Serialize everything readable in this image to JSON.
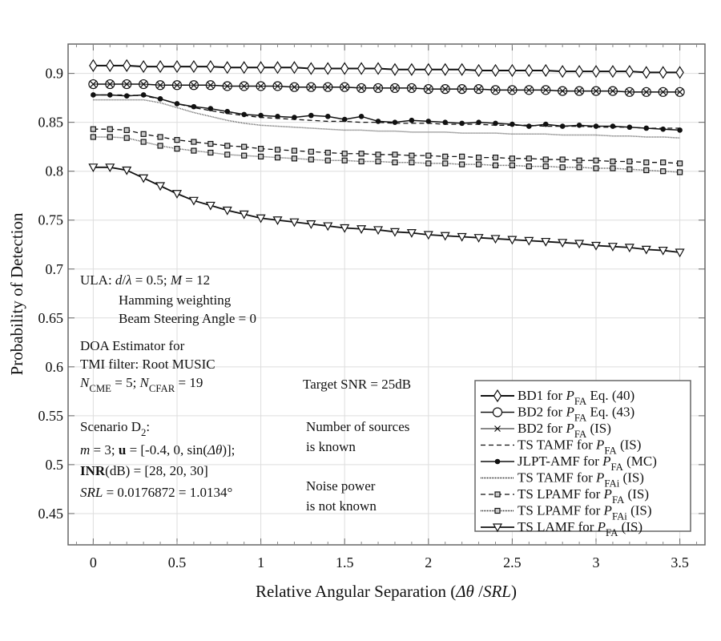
{
  "chart_data": {
    "type": "line",
    "xlabel": [
      {
        "t": "Relative Angular Separation ("
      },
      {
        "t": "Δθ",
        "i": 1
      },
      {
        "t": " /"
      },
      {
        "t": "SRL",
        "i": 1
      },
      {
        "t": ")"
      }
    ],
    "ylabel": "Probability of Detection",
    "xlim": [
      -0.15,
      3.65
    ],
    "ylim": [
      0.418,
      0.93
    ],
    "xticks": [
      0,
      0.5,
      1,
      1.5,
      2,
      2.5,
      3,
      3.5
    ],
    "xtick_labels": [
      "0",
      "0.5",
      "1",
      "1.5",
      "2",
      "2.5",
      "3",
      "3.5"
    ],
    "yticks": [
      0.45,
      0.5,
      0.55,
      0.6,
      0.65,
      0.7,
      0.75,
      0.8,
      0.85,
      0.9
    ],
    "ytick_labels": [
      "0.45",
      "0.5",
      "0.55",
      "0.6",
      "0.65",
      "0.7",
      "0.75",
      "0.8",
      "0.85",
      "0.9"
    ],
    "grid": true,
    "legend_placement": "bottom-right",
    "x": [
      0,
      0.1,
      0.2,
      0.3,
      0.4,
      0.5,
      0.6,
      0.7,
      0.8,
      0.9,
      1.0,
      1.1,
      1.2,
      1.3,
      1.4,
      1.5,
      1.6,
      1.7,
      1.8,
      1.9,
      2.0,
      2.1,
      2.2,
      2.3,
      2.4,
      2.5,
      2.6,
      2.7,
      2.8,
      2.9,
      3.0,
      3.1,
      3.2,
      3.3,
      3.4,
      3.5
    ],
    "series": [
      {
        "name": "BD1 for P_FA Eq. (40)",
        "label": [
          "BD1 for ",
          "FA",
          " Eq. (40)"
        ],
        "marker": "diamond",
        "dash": "",
        "width": 2,
        "values": [
          0.908,
          0.908,
          0.908,
          0.907,
          0.907,
          0.907,
          0.907,
          0.907,
          0.906,
          0.906,
          0.906,
          0.906,
          0.906,
          0.905,
          0.905,
          0.905,
          0.905,
          0.905,
          0.904,
          0.904,
          0.904,
          0.904,
          0.904,
          0.903,
          0.903,
          0.903,
          0.903,
          0.903,
          0.902,
          0.902,
          0.902,
          0.902,
          0.902,
          0.901,
          0.901,
          0.901
        ]
      },
      {
        "name": "BD2  for P_FA Eq. (43)",
        "label": [
          "BD2  for ",
          "FA",
          " Eq. (43)"
        ],
        "marker": "circle",
        "dash": "",
        "width": 1.5,
        "values": [
          0.889,
          0.889,
          0.889,
          0.889,
          0.888,
          0.888,
          0.888,
          0.888,
          0.887,
          0.887,
          0.887,
          0.887,
          0.886,
          0.886,
          0.886,
          0.886,
          0.885,
          0.885,
          0.885,
          0.885,
          0.884,
          0.884,
          0.884,
          0.884,
          0.883,
          0.883,
          0.883,
          0.883,
          0.882,
          0.882,
          0.882,
          0.882,
          0.881,
          0.881,
          0.881,
          0.881
        ]
      },
      {
        "name": "BD2  for P_FA (IS)",
        "label": [
          "BD2  for ",
          "FA",
          " (IS)"
        ],
        "marker": "x",
        "dash": "",
        "width": 1,
        "values": [
          0.889,
          0.889,
          0.889,
          0.889,
          0.888,
          0.888,
          0.888,
          0.888,
          0.887,
          0.887,
          0.887,
          0.887,
          0.886,
          0.886,
          0.886,
          0.886,
          0.885,
          0.885,
          0.885,
          0.885,
          0.884,
          0.884,
          0.884,
          0.884,
          0.883,
          0.883,
          0.883,
          0.883,
          0.882,
          0.882,
          0.882,
          0.882,
          0.881,
          0.881,
          0.881,
          0.881
        ]
      },
      {
        "name": "TS TAMF for P_FA (IS)",
        "label": [
          "TS TAMF for ",
          "FA",
          " (IS)"
        ],
        "marker": "none",
        "dash": "6,4",
        "width": 1.3,
        "values": [
          0.878,
          0.878,
          0.878,
          0.877,
          0.874,
          0.869,
          0.865,
          0.862,
          0.859,
          0.857,
          0.855,
          0.854,
          0.853,
          0.852,
          0.851,
          0.851,
          0.85,
          0.85,
          0.849,
          0.849,
          0.849,
          0.848,
          0.848,
          0.848,
          0.847,
          0.847,
          0.847,
          0.846,
          0.846,
          0.846,
          0.845,
          0.845,
          0.845,
          0.844,
          0.844,
          0.844
        ]
      },
      {
        "name": "JLPT-AMF for P_FA (MC)",
        "label": [
          "JLPT-AMF for ",
          "FA",
          " (MC)"
        ],
        "marker": "dot",
        "dash": "",
        "width": 1.5,
        "values": [
          0.878,
          0.878,
          0.877,
          0.878,
          0.874,
          0.869,
          0.866,
          0.864,
          0.861,
          0.858,
          0.857,
          0.856,
          0.855,
          0.857,
          0.856,
          0.853,
          0.856,
          0.851,
          0.85,
          0.852,
          0.851,
          0.85,
          0.849,
          0.85,
          0.849,
          0.848,
          0.846,
          0.848,
          0.846,
          0.847,
          0.846,
          0.846,
          0.845,
          0.844,
          0.843,
          0.842
        ]
      },
      {
        "name": "TS TAMF for P_FAi (IS)",
        "label": [
          "TS TAMF for ",
          "FAi",
          " (IS)"
        ],
        "marker": "none",
        "dash": "1,1",
        "width": 1.5,
        "values": [
          0.873,
          0.873,
          0.873,
          0.873,
          0.87,
          0.865,
          0.86,
          0.856,
          0.852,
          0.849,
          0.847,
          0.846,
          0.845,
          0.844,
          0.843,
          0.842,
          0.842,
          0.841,
          0.841,
          0.84,
          0.84,
          0.84,
          0.839,
          0.839,
          0.839,
          0.838,
          0.838,
          0.838,
          0.837,
          0.837,
          0.837,
          0.836,
          0.836,
          0.835,
          0.835,
          0.834
        ]
      },
      {
        "name": "TS LPAMF for P_FA (IS)",
        "label": [
          "TS LPAMF for ",
          "FA",
          " (IS)"
        ],
        "marker": "square",
        "dash": "6,4",
        "width": 1.3,
        "values": [
          0.843,
          0.843,
          0.842,
          0.838,
          0.835,
          0.832,
          0.83,
          0.828,
          0.826,
          0.825,
          0.823,
          0.822,
          0.821,
          0.82,
          0.819,
          0.818,
          0.818,
          0.817,
          0.817,
          0.816,
          0.816,
          0.815,
          0.815,
          0.814,
          0.814,
          0.813,
          0.813,
          0.812,
          0.812,
          0.811,
          0.811,
          0.81,
          0.81,
          0.809,
          0.809,
          0.808
        ]
      },
      {
        "name": "TS LPAMF for P_FAi (IS)",
        "label": [
          "TS LPAMF for ",
          "FAi",
          " (IS)"
        ],
        "marker": "square",
        "dash": "1,1",
        "width": 1.5,
        "values": [
          0.835,
          0.835,
          0.834,
          0.83,
          0.826,
          0.823,
          0.821,
          0.819,
          0.817,
          0.816,
          0.815,
          0.814,
          0.813,
          0.812,
          0.811,
          0.811,
          0.81,
          0.81,
          0.809,
          0.809,
          0.808,
          0.808,
          0.807,
          0.807,
          0.806,
          0.806,
          0.805,
          0.805,
          0.804,
          0.804,
          0.803,
          0.803,
          0.802,
          0.801,
          0.8,
          0.799
        ]
      },
      {
        "name": "TS LAMF for P_FA (IS)",
        "label": [
          "TS LAMF for ",
          "FA",
          " (IS)"
        ],
        "marker": "triangle",
        "dash": "",
        "width": 1.8,
        "values": [
          0.804,
          0.804,
          0.801,
          0.793,
          0.785,
          0.777,
          0.77,
          0.765,
          0.76,
          0.756,
          0.752,
          0.75,
          0.748,
          0.746,
          0.744,
          0.742,
          0.741,
          0.74,
          0.738,
          0.737,
          0.735,
          0.734,
          0.733,
          0.732,
          0.731,
          0.73,
          0.729,
          0.728,
          0.727,
          0.726,
          0.724,
          0.723,
          0.722,
          0.72,
          0.719,
          0.717
        ]
      }
    ],
    "annotations": [
      [
        {
          "t": "ULA: "
        },
        {
          "t": "d",
          "i": 1
        },
        {
          "t": "/"
        },
        {
          "t": "λ",
          "i": 1
        },
        {
          "t": " = 0.5; "
        },
        {
          "t": "M",
          "i": 1
        },
        {
          "t": " = 12"
        }
      ],
      [
        {
          "t": "Hamming weighting"
        }
      ],
      [
        {
          "t": "Beam Steering Angle = 0"
        }
      ],
      [
        {
          "t": "DOA Estimator for"
        }
      ],
      [
        {
          "t": "TMI filter: Root MUSIC"
        }
      ],
      [
        {
          "t": "N",
          "i": 1
        },
        {
          "t": "CME",
          "s": 1
        },
        {
          "t": " = 5; "
        },
        {
          "t": "N",
          "i": 1
        },
        {
          "t": "CFAR",
          "s": 1
        },
        {
          "t": " = 19"
        }
      ],
      [
        {
          "t": "Target SNR = 25dB"
        }
      ],
      [
        {
          "t": "Scenario D"
        },
        {
          "t": "2",
          "s": 1
        },
        {
          "t": ":"
        }
      ],
      [
        {
          "t": "m",
          "i": 1
        },
        {
          "t": " = 3; "
        },
        {
          "t": "u",
          "b": 1
        },
        {
          "t": "  = [-0.4, 0, sin("
        },
        {
          "t": "Δθ",
          "i": 1
        },
        {
          "t": ")];"
        }
      ],
      [
        {
          "t": "INR",
          "b": 1
        },
        {
          "t": "(dB) = [28, 20, 30]"
        }
      ],
      [
        {
          "t": "SRL",
          "i": 1
        },
        {
          "t": " = 0.0176872 = 1.0134°"
        }
      ],
      [
        {
          "t": "Number of sources"
        }
      ],
      [
        {
          "t": "is known"
        }
      ],
      [
        {
          "t": "Noise power"
        }
      ],
      [
        {
          "t": "is not known"
        }
      ]
    ]
  }
}
